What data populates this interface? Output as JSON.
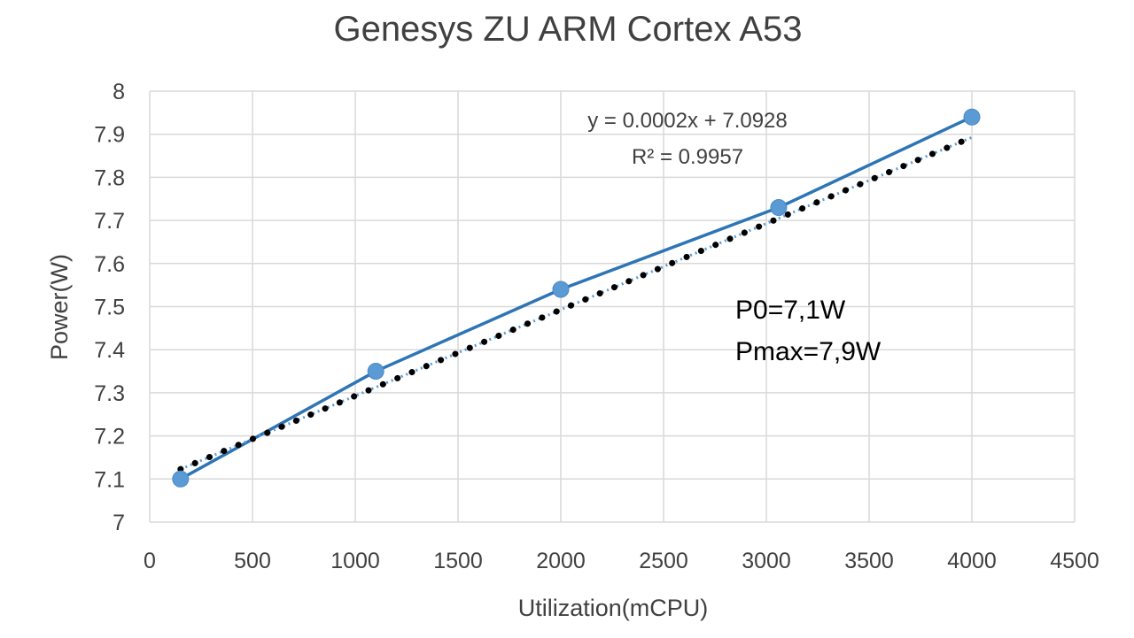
{
  "chart_data": {
    "type": "scatter",
    "title": "Genesys ZU ARM Cortex A53",
    "xlabel": "Utilization(mCPU)",
    "ylabel": "Power(W)",
    "xlim": [
      0,
      4500
    ],
    "ylim": [
      7,
      8
    ],
    "x_ticks": [
      "0",
      "500",
      "1000",
      "1500",
      "2000",
      "2500",
      "3000",
      "3500",
      "4000",
      "4500"
    ],
    "y_ticks": [
      "7",
      "7.1",
      "7.2",
      "7.3",
      "7.4",
      "7.5",
      "7.6",
      "7.7",
      "7.8",
      "7.9",
      "8"
    ],
    "grid": true,
    "series": [
      {
        "style": "line-with-markers",
        "color": "#2e75b6",
        "marker_color": "#5b9bd5",
        "points": [
          {
            "x": 150,
            "y": 7.1
          },
          {
            "x": 1100,
            "y": 7.35
          },
          {
            "x": 2000,
            "y": 7.54
          },
          {
            "x": 3060,
            "y": 7.73
          },
          {
            "x": 4000,
            "y": 7.94
          }
        ]
      }
    ],
    "trendline": {
      "style": "dotted",
      "color": "#000000",
      "slope": 0.0002,
      "intercept": 7.0928,
      "x_range": [
        150,
        4000
      ],
      "equation": "y = 0.0002x + 7.0928",
      "r_squared": "R² = 0.9957"
    },
    "annotations": [
      "P0=7,1W",
      "Pmax=7,9W"
    ]
  }
}
